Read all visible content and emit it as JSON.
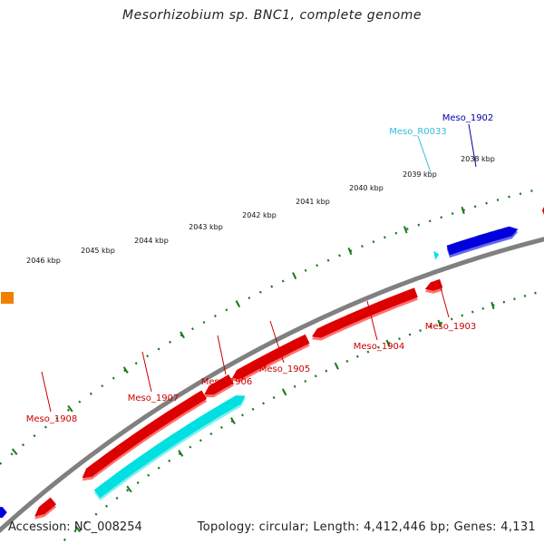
{
  "title": "Mesorhizobium sp. BNC1, complete genome",
  "footer": {
    "accession": "Accession: NC_008254",
    "summary": "Topology: circular; Length: 4,412,446 bp; Genes: 4,131"
  },
  "colors": {
    "backbone": "#808080",
    "tick": "#1a7a1a",
    "red_gene": "#dd0000",
    "cyan_gene": "#00e0e0",
    "blue_gene": "#0000dd",
    "orange_gene": "#f08000",
    "red_label": "#cc0000",
    "cyan_label": "#33bbdd",
    "blue_label": "#0000aa"
  },
  "ruler": {
    "labels": [
      "2038 kbp",
      "2039 kbp",
      "2040 kbp",
      "2041 kbp",
      "2042 kbp",
      "2043 kbp",
      "2044 kbp",
      "2045 kbp",
      "2046 kbp"
    ]
  },
  "genes": [
    {
      "id": "Meso_1902",
      "color": "blue"
    },
    {
      "id": "Meso_R0033",
      "color": "cyan"
    },
    {
      "id": "Meso_1903",
      "color": "red"
    },
    {
      "id": "Meso_1904",
      "color": "red"
    },
    {
      "id": "Meso_1905",
      "color": "red"
    },
    {
      "id": "Meso_1906",
      "color": "red"
    },
    {
      "id": "Meso_1907",
      "color": "red"
    },
    {
      "id": "Meso_1908",
      "color": "red"
    }
  ]
}
